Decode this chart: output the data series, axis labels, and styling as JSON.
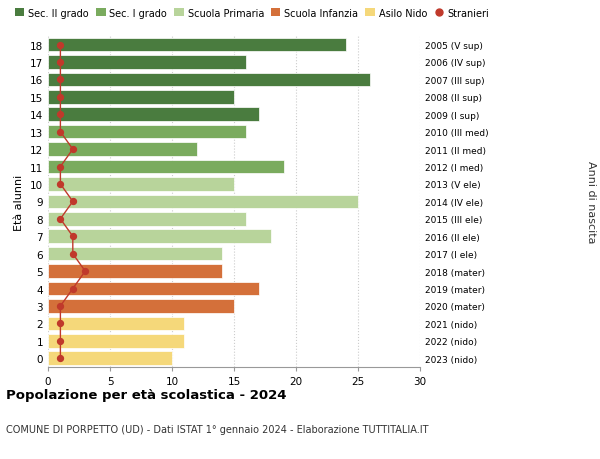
{
  "ages": [
    18,
    17,
    16,
    15,
    14,
    13,
    12,
    11,
    10,
    9,
    8,
    7,
    6,
    5,
    4,
    3,
    2,
    1,
    0
  ],
  "bar_values": [
    24,
    16,
    26,
    15,
    17,
    16,
    12,
    19,
    15,
    25,
    16,
    18,
    14,
    14,
    17,
    15,
    11,
    11,
    10
  ],
  "stranieri": [
    1,
    1,
    1,
    1,
    1,
    1,
    2,
    1,
    1,
    2,
    1,
    2,
    2,
    3,
    2,
    1,
    1,
    1,
    1
  ],
  "right_labels": [
    "2005 (V sup)",
    "2006 (IV sup)",
    "2007 (III sup)",
    "2008 (II sup)",
    "2009 (I sup)",
    "2010 (III med)",
    "2011 (II med)",
    "2012 (I med)",
    "2013 (V ele)",
    "2014 (IV ele)",
    "2015 (III ele)",
    "2016 (II ele)",
    "2017 (I ele)",
    "2018 (mater)",
    "2019 (mater)",
    "2020 (mater)",
    "2021 (nido)",
    "2022 (nido)",
    "2023 (nido)"
  ],
  "age_colors": [
    "#4a7c3f",
    "#4a7c3f",
    "#4a7c3f",
    "#4a7c3f",
    "#4a7c3f",
    "#7aab5e",
    "#7aab5e",
    "#7aab5e",
    "#b8d49b",
    "#b8d49b",
    "#b8d49b",
    "#b8d49b",
    "#b8d49b",
    "#d4703a",
    "#d4703a",
    "#d4703a",
    "#f5d87a",
    "#f5d87a",
    "#f5d87a"
  ],
  "stranieri_color": "#c0392b",
  "title": "Popolazione per età scolastica - 2024",
  "subtitle": "COMUNE DI PORPETTO (UD) - Dati ISTAT 1° gennaio 2024 - Elaborazione TUTTITALIA.IT",
  "ylabel": "Età alunni",
  "right_ylabel": "Anni di nascita",
  "xlim": [
    0,
    30
  ],
  "legend_labels": [
    "Sec. II grado",
    "Sec. I grado",
    "Scuola Primaria",
    "Scuola Infanzia",
    "Asilo Nido",
    "Stranieri"
  ],
  "legend_colors": [
    "#4a7c3f",
    "#7aab5e",
    "#b8d49b",
    "#d4703a",
    "#f5d87a",
    "#c0392b"
  ],
  "background_color": "#ffffff",
  "grid_color": "#cccccc"
}
